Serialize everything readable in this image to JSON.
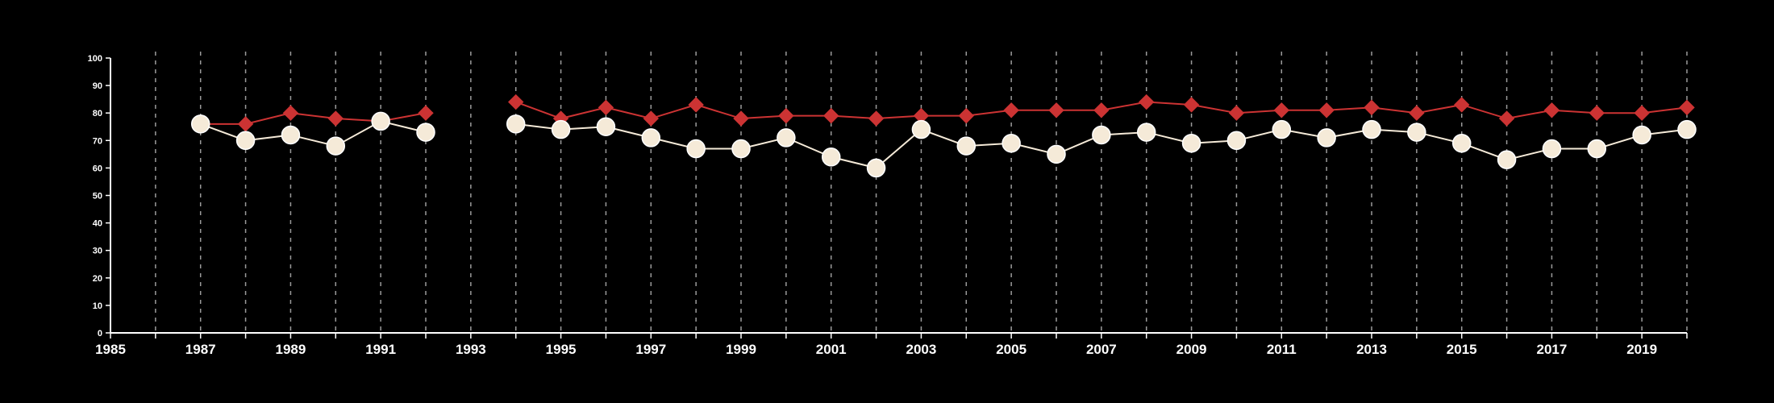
{
  "chart_data": {
    "type": "line",
    "title": "",
    "xlabel": "",
    "ylabel": "",
    "xlim": [
      1985,
      2020
    ],
    "ylim": [
      0,
      100
    ],
    "y_ticks": [
      0,
      10,
      20,
      30,
      40,
      50,
      60,
      70,
      80,
      90,
      100
    ],
    "x_tick_labels": [
      1985,
      1987,
      1989,
      1991,
      1993,
      1995,
      1997,
      1999,
      2001,
      2003,
      2005,
      2007,
      2009,
      2011,
      2013,
      2015,
      2017,
      2019
    ],
    "grid": "vertical dashed, every year",
    "background": "#000000",
    "series": [
      {
        "color": "#cc3333",
        "marker": "diamond",
        "points": [
          {
            "x": 1987,
            "y": 76
          },
          {
            "x": 1988,
            "y": 76
          },
          {
            "x": 1989,
            "y": 80
          },
          {
            "x": 1990,
            "y": 78
          },
          {
            "x": 1991,
            "y": 77
          },
          {
            "x": 1992,
            "y": 80
          },
          {
            "x": 1994,
            "y": 84
          },
          {
            "x": 1995,
            "y": 78
          },
          {
            "x": 1996,
            "y": 82
          },
          {
            "x": 1997,
            "y": 78
          },
          {
            "x": 1998,
            "y": 83
          },
          {
            "x": 1999,
            "y": 78
          },
          {
            "x": 2000,
            "y": 79
          },
          {
            "x": 2001,
            "y": 79
          },
          {
            "x": 2002,
            "y": 78
          },
          {
            "x": 2003,
            "y": 79
          },
          {
            "x": 2004,
            "y": 79
          },
          {
            "x": 2005,
            "y": 81
          },
          {
            "x": 2006,
            "y": 81
          },
          {
            "x": 2007,
            "y": 81
          },
          {
            "x": 2008,
            "y": 84
          },
          {
            "x": 2009,
            "y": 83
          },
          {
            "x": 2010,
            "y": 80
          },
          {
            "x": 2011,
            "y": 81
          },
          {
            "x": 2012,
            "y": 81
          },
          {
            "x": 2013,
            "y": 82
          },
          {
            "x": 2014,
            "y": 80
          },
          {
            "x": 2015,
            "y": 83
          },
          {
            "x": 2016,
            "y": 78
          },
          {
            "x": 2017,
            "y": 81
          },
          {
            "x": 2018,
            "y": 80
          },
          {
            "x": 2019,
            "y": 80
          },
          {
            "x": 2020,
            "y": 82
          }
        ]
      },
      {
        "color": "#f5ead8",
        "marker": "circle",
        "points": [
          {
            "x": 1987,
            "y": 76
          },
          {
            "x": 1988,
            "y": 70
          },
          {
            "x": 1989,
            "y": 72
          },
          {
            "x": 1990,
            "y": 68
          },
          {
            "x": 1991,
            "y": 77
          },
          {
            "x": 1992,
            "y": 73
          },
          {
            "x": 1994,
            "y": 76
          },
          {
            "x": 1995,
            "y": 74
          },
          {
            "x": 1996,
            "y": 75
          },
          {
            "x": 1997,
            "y": 71
          },
          {
            "x": 1998,
            "y": 67
          },
          {
            "x": 1999,
            "y": 67
          },
          {
            "x": 2000,
            "y": 71
          },
          {
            "x": 2001,
            "y": 64
          },
          {
            "x": 2002,
            "y": 60
          },
          {
            "x": 2003,
            "y": 74
          },
          {
            "x": 2004,
            "y": 68
          },
          {
            "x": 2005,
            "y": 69
          },
          {
            "x": 2006,
            "y": 65
          },
          {
            "x": 2007,
            "y": 72
          },
          {
            "x": 2008,
            "y": 73
          },
          {
            "x": 2009,
            "y": 69
          },
          {
            "x": 2010,
            "y": 70
          },
          {
            "x": 2011,
            "y": 74
          },
          {
            "x": 2012,
            "y": 71
          },
          {
            "x": 2013,
            "y": 74
          },
          {
            "x": 2014,
            "y": 73
          },
          {
            "x": 2015,
            "y": 69
          },
          {
            "x": 2016,
            "y": 63
          },
          {
            "x": 2017,
            "y": 67
          },
          {
            "x": 2018,
            "y": 67
          },
          {
            "x": 2019,
            "y": 72
          },
          {
            "x": 2020,
            "y": 74
          }
        ]
      }
    ]
  }
}
